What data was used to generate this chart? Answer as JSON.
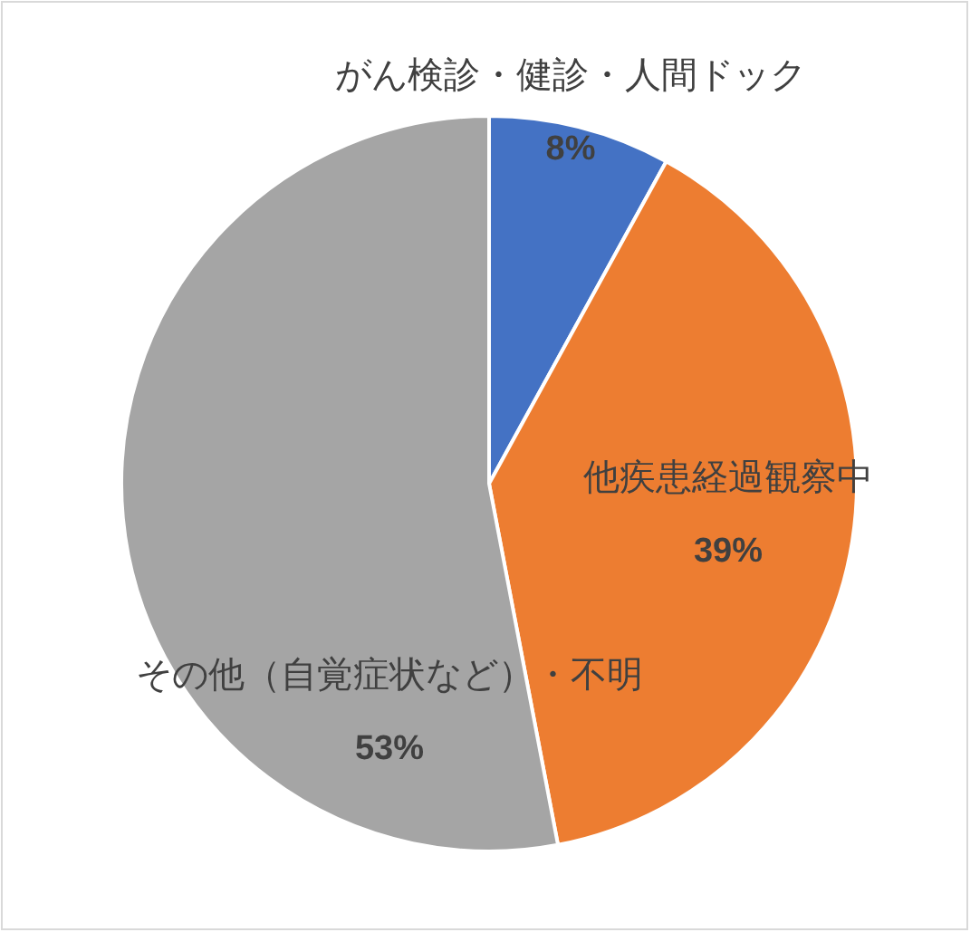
{
  "chart_data": {
    "type": "pie",
    "categories": [
      "がん検診・健診・人間ドック",
      "他疾患経過観察中",
      "その他（自覚症状など）・不明"
    ],
    "values": [
      8,
      39,
      53
    ],
    "value_labels": [
      "8%",
      "39%",
      "53%"
    ],
    "colors": [
      "#4472c4",
      "#ed7d31",
      "#a5a5a5"
    ]
  }
}
